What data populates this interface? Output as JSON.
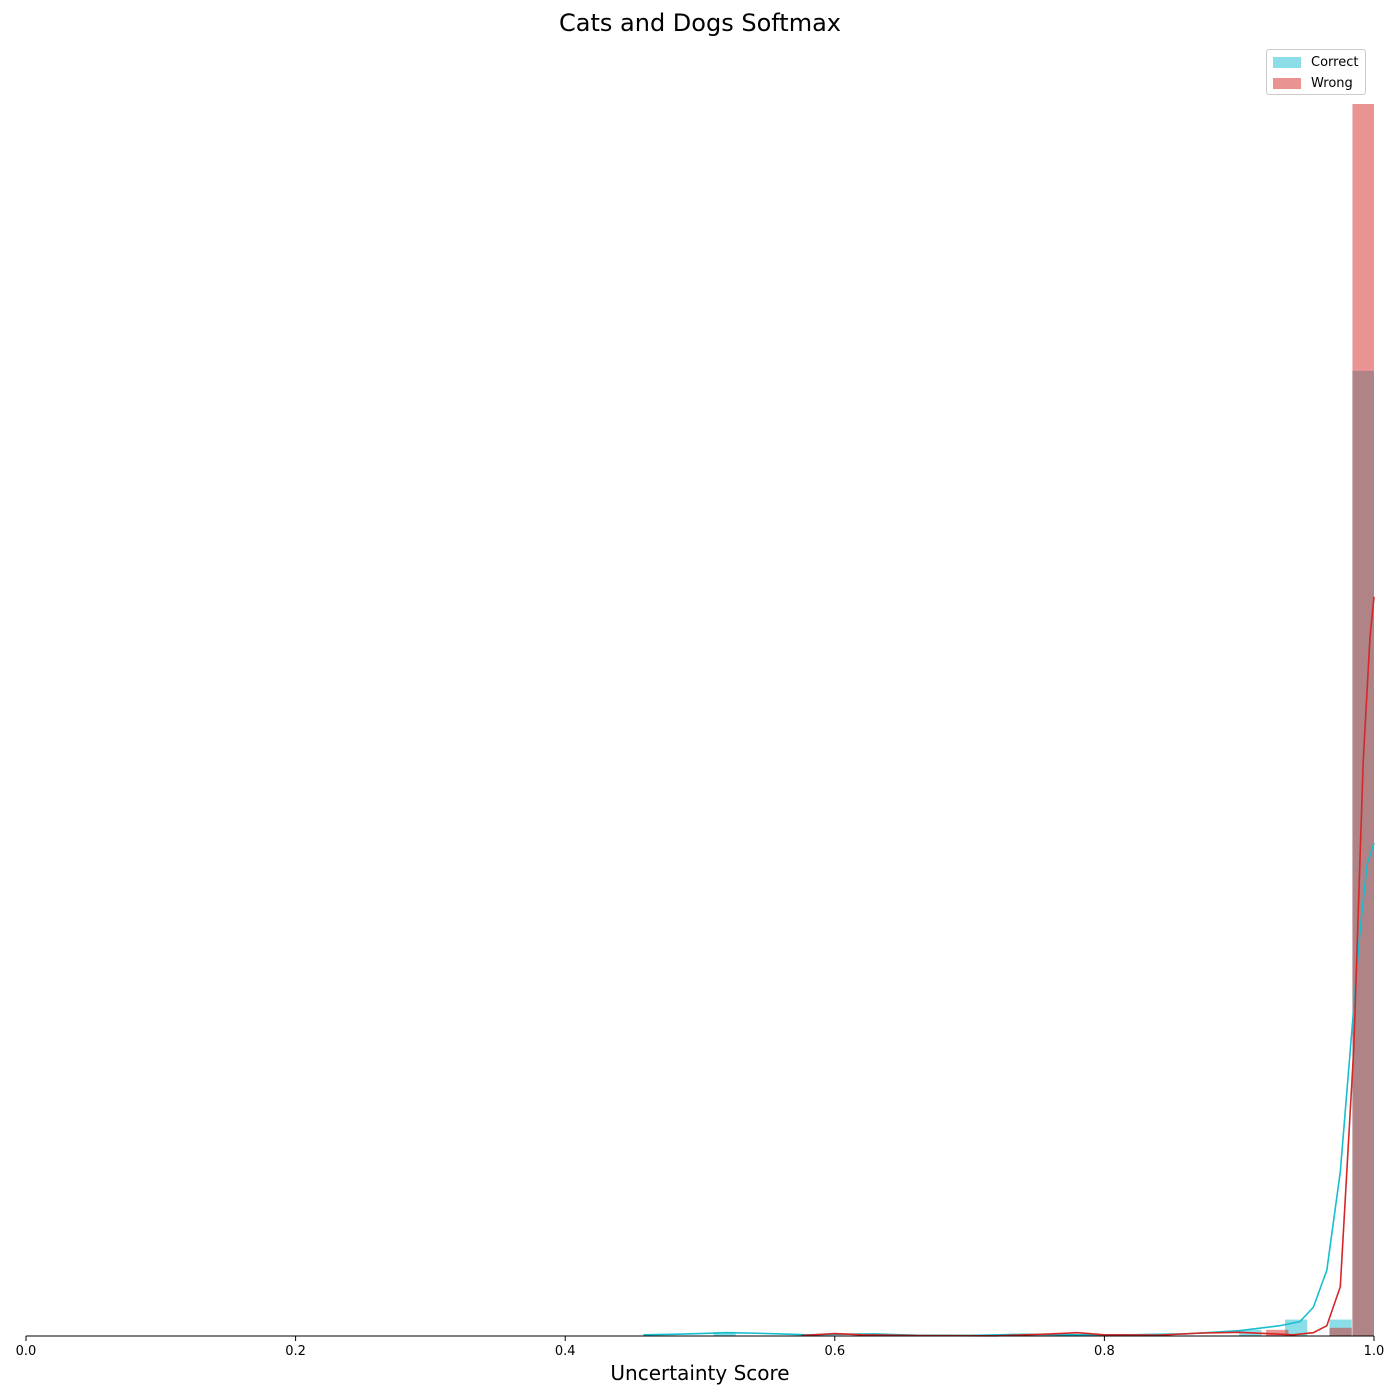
{
  "chart_data": {
    "type": "bar",
    "title": "Cats and Dogs Softmax",
    "xlabel": "Uncertainty Score",
    "ylabel": "",
    "xlim": [
      0.0,
      1.0
    ],
    "ylim": [
      0,
      300
    ],
    "xticks": [
      "0.0",
      "0.2",
      "0.4",
      "0.6",
      "0.8",
      "1.0"
    ],
    "bin_width": 0.0165,
    "legend_position": "top-right",
    "grid": false,
    "series": [
      {
        "name": "Correct",
        "color": "#17becf",
        "bins": [
          {
            "x0": 0.51,
            "count": 1
          },
          {
            "x0": 0.9,
            "count": 1.5
          },
          {
            "x0": 0.934,
            "count": 4
          },
          {
            "x0": 0.967,
            "count": 4
          },
          {
            "x0": 0.984,
            "count": 235
          }
        ],
        "kde": [
          [
            0.458,
            0.3
          ],
          [
            0.48,
            0.4
          ],
          [
            0.5,
            0.6
          ],
          [
            0.52,
            0.8
          ],
          [
            0.54,
            0.7
          ],
          [
            0.56,
            0.5
          ],
          [
            0.58,
            0.3
          ],
          [
            0.6,
            0.4
          ],
          [
            0.63,
            0.5
          ],
          [
            0.66,
            0.2
          ],
          [
            0.7,
            0.15
          ],
          [
            0.74,
            0.4
          ],
          [
            0.78,
            0.3
          ],
          [
            0.82,
            0.3
          ],
          [
            0.86,
            0.5
          ],
          [
            0.9,
            1.3
          ],
          [
            0.93,
            2.5
          ],
          [
            0.945,
            3.5
          ],
          [
            0.955,
            7
          ],
          [
            0.965,
            16
          ],
          [
            0.975,
            40
          ],
          [
            0.985,
            80
          ],
          [
            0.99,
            100
          ],
          [
            0.995,
            115
          ],
          [
            1.0,
            120
          ]
        ]
      },
      {
        "name": "Wrong",
        "color": "#d62728",
        "bins": [
          {
            "x0": 0.92,
            "count": 1.5
          },
          {
            "x0": 0.967,
            "count": 2
          },
          {
            "x0": 0.984,
            "count": 300
          }
        ],
        "kde": [
          [
            0.575,
            0.1
          ],
          [
            0.6,
            0.6
          ],
          [
            0.62,
            0.3
          ],
          [
            0.66,
            0.1
          ],
          [
            0.72,
            0.05
          ],
          [
            0.76,
            0.5
          ],
          [
            0.78,
            0.8
          ],
          [
            0.8,
            0.3
          ],
          [
            0.84,
            0.2
          ],
          [
            0.87,
            0.7
          ],
          [
            0.9,
            0.9
          ],
          [
            0.92,
            0.6
          ],
          [
            0.94,
            0.3
          ],
          [
            0.955,
            0.8
          ],
          [
            0.965,
            2.5
          ],
          [
            0.975,
            12
          ],
          [
            0.985,
            70
          ],
          [
            0.992,
            140
          ],
          [
            0.997,
            170
          ],
          [
            1.0,
            180
          ]
        ]
      }
    ]
  }
}
